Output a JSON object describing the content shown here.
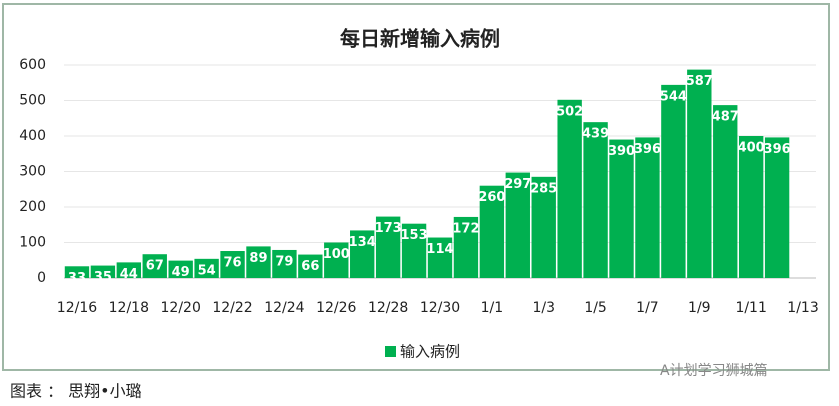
{
  "chart_data": {
    "type": "bar",
    "title": "每日新增输入病例",
    "categories": [
      "12/16",
      null,
      "12/18",
      null,
      "12/20",
      null,
      "12/22",
      null,
      "12/24",
      null,
      "12/26",
      null,
      "12/28",
      null,
      "12/30",
      null,
      "1/1",
      null,
      "1/3",
      null,
      "1/5",
      null,
      "1/7",
      null,
      "1/9",
      null,
      "1/11",
      null,
      "1/13"
    ],
    "series": [
      {
        "name": "输入病例",
        "color": "#00b050",
        "values": [
          33,
          35,
          44,
          67,
          49,
          54,
          76,
          89,
          79,
          66,
          100,
          134,
          173,
          153,
          114,
          172,
          260,
          297,
          285,
          502,
          439,
          390,
          396,
          544,
          587,
          487,
          400,
          396,
          null
        ]
      }
    ],
    "ylim": [
      0,
      600
    ],
    "yticks": [
      0,
      100,
      200,
      300,
      400,
      500,
      600
    ],
    "grid": true,
    "legend": "bottom"
  },
  "caption": "图表 ： 思翔•小璐",
  "watermark": "A计划学习狮城篇"
}
